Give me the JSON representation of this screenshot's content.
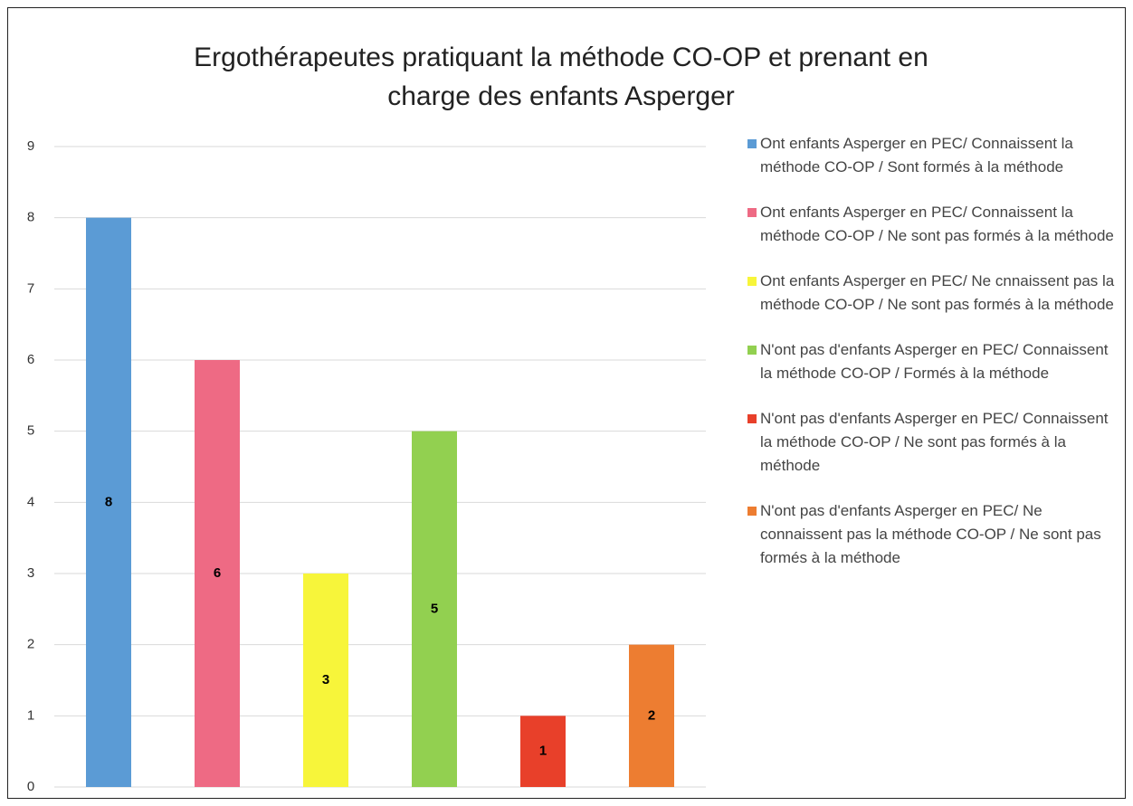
{
  "chart_data": {
    "type": "bar",
    "title": "Ergothérapeutes pratiquant la méthode CO-OP et prenant en charge des enfants Asperger",
    "series": [
      {
        "name": "Ont enfants Asperger en PEC/ Connaissent la méthode CO-OP / Sont formés à la méthode",
        "color": "#5b9bd5",
        "values": [
          8
        ]
      },
      {
        "name": "Ont enfants Asperger en PEC/ Connaissent la méthode CO-OP / Ne sont pas formés à la méthode",
        "color": "#ee6a84",
        "values": [
          6
        ]
      },
      {
        "name": "Ont enfants Asperger en PEC/ Ne cnnaissent pas la méthode CO-OP / Ne sont pas formés à la méthode",
        "color": "#f7f53a",
        "values": [
          3
        ]
      },
      {
        "name": "N'ont pas d'enfants Asperger en PEC/ Connaissent la méthode CO-OP / Formés à la méthode",
        "color": "#92d050",
        "values": [
          5
        ]
      },
      {
        "name": "N'ont pas d'enfants Asperger en PEC/ Connaissent la méthode CO-OP / Ne sont pas formés à la méthode",
        "color": "#e8402a",
        "values": [
          1
        ]
      },
      {
        "name": "N'ont pas d'enfants Asperger en PEC/  Ne connaissent pas la méthode CO-OP / Ne sont pas formés à la méthode",
        "color": "#ed7d31",
        "values": [
          2
        ]
      }
    ],
    "ylim": [
      0,
      9
    ],
    "yticks": [
      0,
      1,
      2,
      3,
      4,
      5,
      6,
      7,
      8,
      9
    ],
    "grid": true,
    "legend": "right"
  }
}
